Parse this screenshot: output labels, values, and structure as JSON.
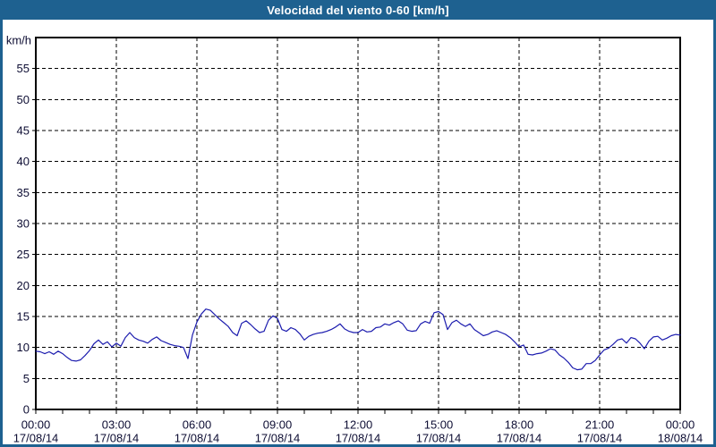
{
  "window": {
    "title": "Velocidad del viento 0-60 [km/h]"
  },
  "colors": {
    "titlebar_bg": "#1e6190",
    "frame": "#1e6190",
    "plot_background": "#ffffff",
    "grid": "#000000",
    "axis_text": "#0d0d33",
    "series_line": "#1c1cae"
  },
  "chart_data": {
    "type": "line",
    "title": "Velocidad del viento 0-60 [km/h]",
    "ylabel": "km/h",
    "ylim": [
      0,
      60
    ],
    "ytick_interval": 5,
    "ytick_labels": [
      "0",
      "5",
      "10",
      "15",
      "20",
      "25",
      "30",
      "35",
      "40",
      "45",
      "50",
      "55"
    ],
    "grid": true,
    "xlim_hours": [
      0,
      24
    ],
    "x_major_tick_hours": 3,
    "x_minor_tick_hours": 1,
    "x_ticks": [
      {
        "time": "00:00",
        "date": "17/08/14"
      },
      {
        "time": "03:00",
        "date": "17/08/14"
      },
      {
        "time": "06:00",
        "date": "17/08/14"
      },
      {
        "time": "09:00",
        "date": "17/08/14"
      },
      {
        "time": "12:00",
        "date": "17/08/14"
      },
      {
        "time": "15:00",
        "date": "17/08/14"
      },
      {
        "time": "18:00",
        "date": "17/08/14"
      },
      {
        "time": "21:00",
        "date": "17/08/14"
      },
      {
        "time": "00:00",
        "date": "18/08/14"
      }
    ],
    "series": [
      {
        "name": "Velocidad del viento",
        "color": "#1c1cae",
        "interval_minutes": 10,
        "values": [
          9.4,
          9.3,
          9.0,
          9.3,
          8.9,
          9.4,
          9.0,
          8.4,
          7.9,
          7.8,
          8.0,
          8.7,
          9.5,
          10.6,
          11.2,
          10.5,
          10.9,
          10.1,
          10.7,
          10.2,
          11.6,
          12.4,
          11.6,
          11.2,
          11.0,
          10.7,
          11.3,
          11.7,
          11.1,
          10.8,
          10.5,
          10.3,
          10.2,
          10.0,
          8.2,
          12.0,
          14.1,
          15.4,
          16.2,
          16.0,
          15.3,
          14.6,
          14.0,
          13.4,
          12.4,
          11.9,
          13.9,
          14.3,
          13.7,
          13.0,
          12.4,
          12.6,
          14.4,
          15.1,
          14.7,
          12.9,
          12.6,
          13.2,
          12.9,
          12.2,
          11.2,
          11.8,
          12.1,
          12.3,
          12.4,
          12.6,
          12.9,
          13.3,
          13.8,
          13.0,
          12.6,
          12.4,
          12.4,
          12.9,
          12.5,
          12.6,
          13.2,
          13.3,
          13.8,
          13.6,
          14.0,
          14.3,
          13.8,
          12.8,
          12.6,
          12.7,
          13.8,
          14.2,
          13.9,
          15.6,
          15.8,
          15.3,
          12.9,
          14.0,
          14.4,
          13.8,
          13.4,
          13.8,
          12.9,
          12.4,
          11.9,
          12.1,
          12.5,
          12.7,
          12.4,
          12.1,
          11.6,
          10.9,
          10.1,
          10.4,
          8.9,
          8.8,
          9.0,
          9.1,
          9.4,
          9.8,
          9.6,
          8.8,
          8.3,
          7.6,
          6.7,
          6.4,
          6.5,
          7.4,
          7.4,
          7.9,
          8.8,
          9.6,
          9.9,
          10.5,
          11.2,
          11.4,
          10.7,
          11.6,
          11.4,
          10.7,
          9.8,
          11.0,
          11.7,
          11.8,
          11.2,
          11.5,
          11.9,
          12.1,
          12.0
        ]
      }
    ]
  }
}
